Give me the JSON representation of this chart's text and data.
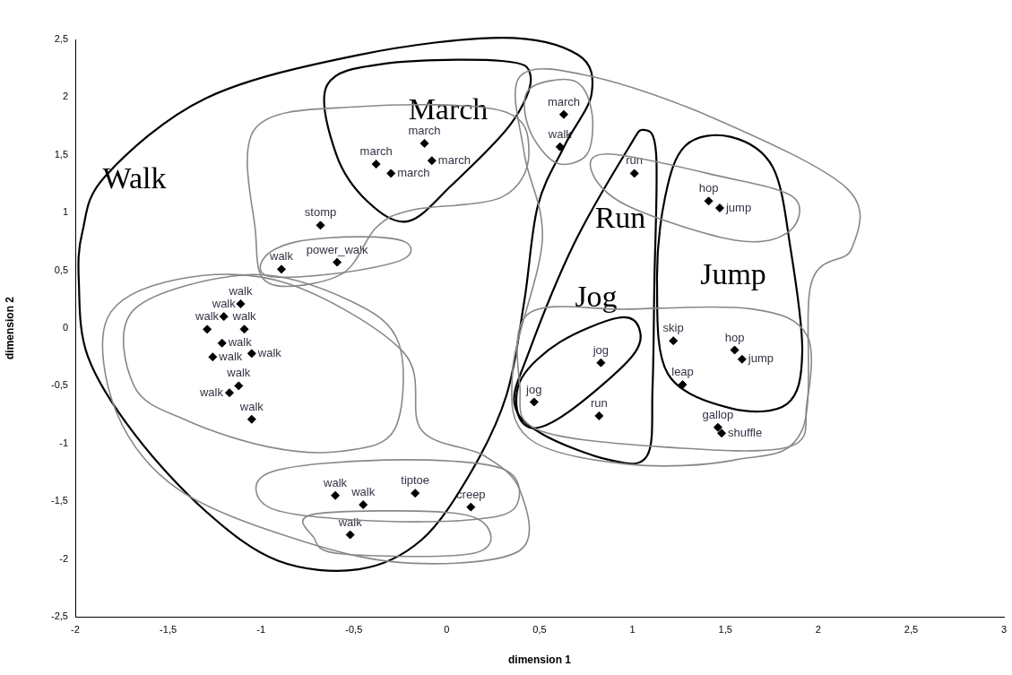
{
  "chart_data": {
    "type": "scatter",
    "xlabel": "dimension 1",
    "ylabel": "dimension 2",
    "xlim": [
      -2,
      3
    ],
    "ylim": [
      -2.5,
      2.5
    ],
    "xticks": [
      -2,
      {
        "value": -1.5,
        "label": "-1,5"
      },
      -1,
      {
        "value": -0.5,
        "label": "-0,5"
      },
      0,
      {
        "value": 0.5,
        "label": "0,5"
      },
      1,
      {
        "value": 1.5,
        "label": "1,5"
      },
      2,
      {
        "value": 2.5,
        "label": "2,5"
      },
      3
    ],
    "yticks": [
      {
        "value": -2.5,
        "label": "-2,5"
      },
      -2,
      {
        "value": -1.5,
        "label": "-1,5"
      },
      -1,
      {
        "value": -0.5,
        "label": "-0,5"
      },
      0,
      {
        "value": 0.5,
        "label": "0,5"
      },
      1,
      {
        "value": 1.5,
        "label": "1,5"
      },
      2,
      {
        "value": 2.5,
        "label": "2,5"
      }
    ],
    "grid": false,
    "legend": false,
    "marker": "diamond",
    "series": [
      {
        "color": "#000000",
        "x": [
          0.63,
          0.61,
          1.01,
          1.41,
          1.47,
          -0.12,
          -0.38,
          -0.08,
          -0.3,
          -0.68,
          -0.59,
          -0.89,
          -1.11,
          -1.2,
          -1.29,
          -1.21,
          -1.09,
          -1.26,
          -1.05,
          -1.12,
          -1.17,
          -1.05,
          -0.6,
          -0.45,
          -0.17,
          0.13,
          -0.52,
          0.83,
          0.47,
          0.82,
          1.22,
          1.55,
          1.59,
          1.27,
          1.46,
          1.48
        ],
        "values": [
          1.85,
          1.57,
          1.34,
          1.1,
          1.04,
          1.6,
          1.42,
          1.45,
          1.34,
          0.89,
          0.57,
          0.51,
          0.21,
          0.1,
          -0.01,
          -0.13,
          -0.01,
          -0.25,
          -0.22,
          -0.5,
          -0.56,
          -0.79,
          -1.45,
          -1.53,
          -1.43,
          -1.55,
          -1.79,
          -0.3,
          -0.64,
          -0.76,
          -0.11,
          -0.19,
          -0.27,
          -0.49,
          -0.86,
          -0.91
        ]
      }
    ],
    "annotations": [
      {
        "text": "march",
        "x": 0.63,
        "y": 1.85
      },
      {
        "text": "walk",
        "x": 0.61,
        "y": 1.57
      },
      {
        "text": "run",
        "x": 1.01,
        "y": 1.34
      },
      {
        "text": "hop",
        "x": 1.41,
        "y": 1.1
      },
      {
        "text": "jump",
        "x": 1.47,
        "y": 1.04
      },
      {
        "text": "march",
        "x": -0.12,
        "y": 1.6
      },
      {
        "text": "march",
        "x": -0.38,
        "y": 1.42
      },
      {
        "text": "march",
        "x": -0.08,
        "y": 1.45
      },
      {
        "text": "march",
        "x": -0.3,
        "y": 1.34
      },
      {
        "text": "stomp",
        "x": -0.68,
        "y": 0.89
      },
      {
        "text": "power_walk",
        "x": -0.59,
        "y": 0.57
      },
      {
        "text": "walk",
        "x": -0.89,
        "y": 0.51
      },
      {
        "text": "walk",
        "x": -1.11,
        "y": 0.21
      },
      {
        "text": "walk",
        "x": -1.2,
        "y": 0.1
      },
      {
        "text": "walk",
        "x": -1.29,
        "y": -0.01
      },
      {
        "text": "walk",
        "x": -1.21,
        "y": -0.13
      },
      {
        "text": "walk",
        "x": -1.09,
        "y": -0.01
      },
      {
        "text": "walk",
        "x": -1.26,
        "y": -0.25
      },
      {
        "text": "walk",
        "x": -1.05,
        "y": -0.22
      },
      {
        "text": "walk",
        "x": -1.12,
        "y": -0.5
      },
      {
        "text": "walk",
        "x": -1.17,
        "y": -0.56
      },
      {
        "text": "walk",
        "x": -1.05,
        "y": -0.79
      },
      {
        "text": "walk",
        "x": -0.6,
        "y": -1.45
      },
      {
        "text": "walk",
        "x": -0.45,
        "y": -1.53
      },
      {
        "text": "tiptoe",
        "x": -0.17,
        "y": -1.43
      },
      {
        "text": "creep",
        "x": 0.13,
        "y": -1.55
      },
      {
        "text": "walk",
        "x": -0.52,
        "y": -1.79
      },
      {
        "text": "jog",
        "x": 0.83,
        "y": -0.3
      },
      {
        "text": "jog",
        "x": 0.47,
        "y": -0.64
      },
      {
        "text": "run",
        "x": 0.82,
        "y": -0.76
      },
      {
        "text": "skip",
        "x": 1.22,
        "y": -0.11
      },
      {
        "text": "hop",
        "x": 1.55,
        "y": -0.19
      },
      {
        "text": "jump",
        "x": 1.59,
        "y": -0.27
      },
      {
        "text": "leap",
        "x": 1.27,
        "y": -0.49
      },
      {
        "text": "gallop",
        "x": 1.46,
        "y": -0.86
      },
      {
        "text": "shuffle",
        "x": 1.48,
        "y": -0.91
      },
      "Walk",
      "March",
      "Run",
      "Jog",
      "Jump"
    ]
  }
}
